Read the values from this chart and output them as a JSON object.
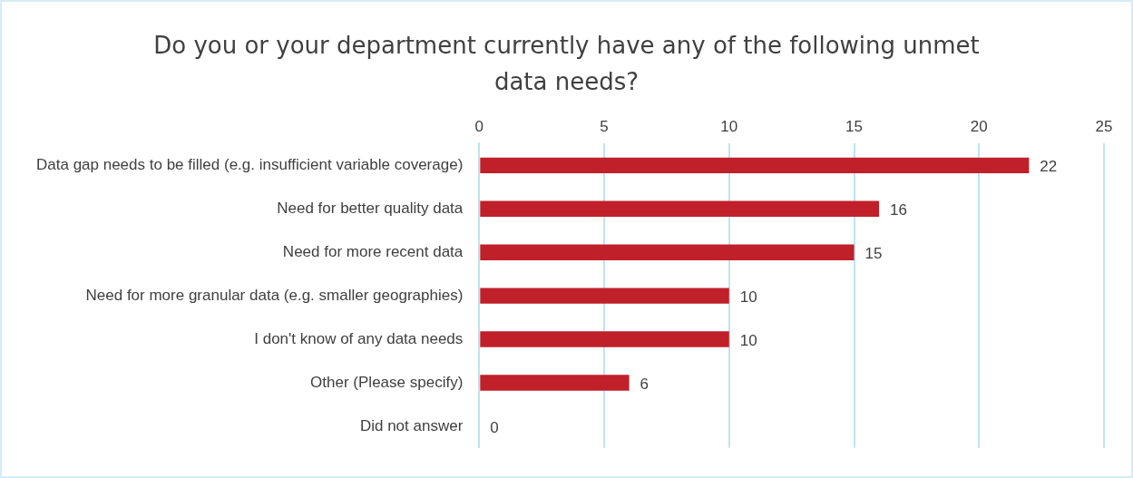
{
  "chart_data": {
    "type": "bar",
    "orientation": "horizontal",
    "title": "Do you or your department currently have any of the following unmet data needs?",
    "categories": [
      "Data gap needs to be filled (e.g. insufficient variable coverage)",
      "Need for better quality data",
      "Need for more recent data",
      "Need for more granular data (e.g. smaller geographies)",
      "I don't know of any data needs",
      "Other (Please specify)",
      "Did not answer"
    ],
    "values": [
      22,
      16,
      15,
      10,
      10,
      6,
      0
    ],
    "color": "#c0202a",
    "xlim": [
      0,
      25
    ],
    "xticks": [
      0,
      5,
      10,
      15,
      20,
      25
    ],
    "grid": "x",
    "data_labels": true
  }
}
